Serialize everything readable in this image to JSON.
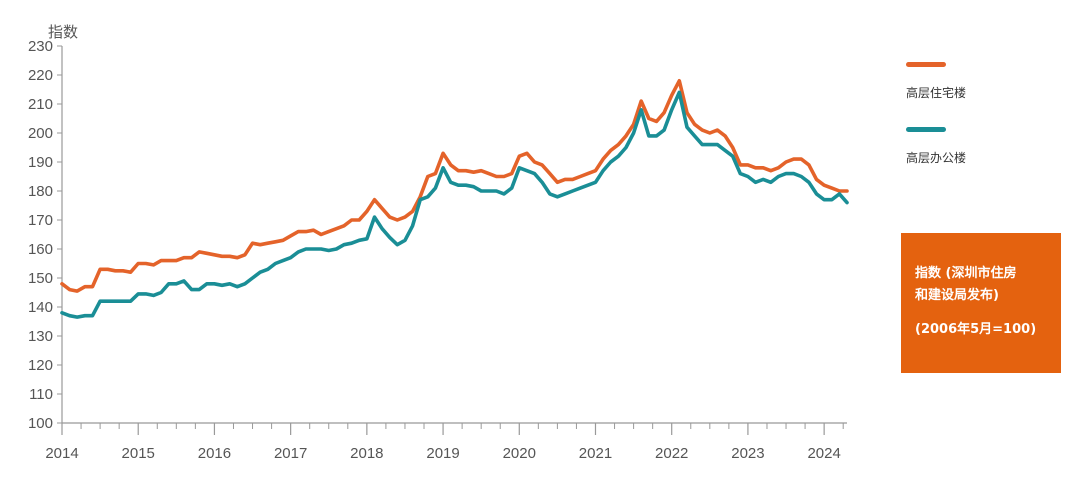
{
  "chart_data": {
    "type": "line",
    "ylabel": "指数",
    "ylim": [
      100,
      230
    ],
    "yticks": [
      100,
      110,
      120,
      130,
      140,
      150,
      160,
      170,
      180,
      190,
      200,
      210,
      220,
      230
    ],
    "xlim": [
      2014.0,
      2024.3
    ],
    "xticks": [
      "2014",
      "2015",
      "2016",
      "2017",
      "2018",
      "2019",
      "2020",
      "2021",
      "2022",
      "2023",
      "2024"
    ],
    "legend_position": "right",
    "grid": false,
    "series": [
      {
        "name": "高层住宅楼",
        "color": "#e4632a",
        "x": [
          2014.0,
          2014.1,
          2014.2,
          2014.3,
          2014.4,
          2014.5,
          2014.6,
          2014.7,
          2014.8,
          2014.9,
          2015.0,
          2015.1,
          2015.2,
          2015.3,
          2015.4,
          2015.5,
          2015.6,
          2015.7,
          2015.8,
          2015.9,
          2016.0,
          2016.1,
          2016.2,
          2016.3,
          2016.4,
          2016.5,
          2016.6,
          2016.7,
          2016.8,
          2016.9,
          2017.0,
          2017.1,
          2017.2,
          2017.3,
          2017.4,
          2017.5,
          2017.6,
          2017.7,
          2017.8,
          2017.9,
          2018.0,
          2018.1,
          2018.2,
          2018.3,
          2018.4,
          2018.5,
          2018.6,
          2018.7,
          2018.8,
          2018.9,
          2019.0,
          2019.1,
          2019.2,
          2019.3,
          2019.4,
          2019.5,
          2019.6,
          2019.7,
          2019.8,
          2019.9,
          2020.0,
          2020.1,
          2020.2,
          2020.3,
          2020.4,
          2020.5,
          2020.6,
          2020.7,
          2020.8,
          2020.9,
          2021.0,
          2021.1,
          2021.2,
          2021.3,
          2021.4,
          2021.5,
          2021.6,
          2021.7,
          2021.8,
          2021.9,
          2022.0,
          2022.1,
          2022.2,
          2022.3,
          2022.4,
          2022.5,
          2022.6,
          2022.7,
          2022.8,
          2022.9,
          2023.0,
          2023.1,
          2023.2,
          2023.3,
          2023.4,
          2023.5,
          2023.6,
          2023.7,
          2023.8,
          2023.9,
          2024.0,
          2024.1,
          2024.2,
          2024.3
        ],
        "values": [
          148,
          146,
          145.5,
          147,
          147,
          153,
          153,
          152.5,
          152.5,
          152,
          155,
          155,
          154.5,
          156,
          156,
          156,
          157,
          157,
          159,
          158.5,
          158,
          157.5,
          157.5,
          157,
          158,
          162,
          161.5,
          162,
          162.5,
          163,
          164.5,
          166,
          166,
          166.5,
          165,
          166,
          167,
          168,
          170,
          170,
          173,
          177,
          174,
          171,
          170,
          171,
          173,
          178,
          185,
          186,
          193,
          189,
          187,
          187,
          186.5,
          187,
          186,
          185,
          185,
          186,
          192,
          193,
          190,
          189,
          186,
          183,
          184,
          184,
          185,
          186,
          187,
          191,
          194,
          196,
          199,
          203,
          211,
          205,
          204,
          207,
          213,
          218,
          207,
          203,
          201,
          200,
          201,
          199,
          195,
          189,
          189,
          188,
          188,
          187,
          188,
          190,
          191,
          191,
          189,
          184,
          182,
          181,
          180,
          180
        ]
      },
      {
        "name": "高层办公楼",
        "color": "#1a8e96",
        "x": [
          2014.0,
          2014.1,
          2014.2,
          2014.3,
          2014.4,
          2014.5,
          2014.6,
          2014.7,
          2014.8,
          2014.9,
          2015.0,
          2015.1,
          2015.2,
          2015.3,
          2015.4,
          2015.5,
          2015.6,
          2015.7,
          2015.8,
          2015.9,
          2016.0,
          2016.1,
          2016.2,
          2016.3,
          2016.4,
          2016.5,
          2016.6,
          2016.7,
          2016.8,
          2016.9,
          2017.0,
          2017.1,
          2017.2,
          2017.3,
          2017.4,
          2017.5,
          2017.6,
          2017.7,
          2017.8,
          2017.9,
          2018.0,
          2018.1,
          2018.2,
          2018.3,
          2018.4,
          2018.5,
          2018.6,
          2018.7,
          2018.8,
          2018.9,
          2019.0,
          2019.1,
          2019.2,
          2019.3,
          2019.4,
          2019.5,
          2019.6,
          2019.7,
          2019.8,
          2019.9,
          2020.0,
          2020.1,
          2020.2,
          2020.3,
          2020.4,
          2020.5,
          2020.6,
          2020.7,
          2020.8,
          2020.9,
          2021.0,
          2021.1,
          2021.2,
          2021.3,
          2021.4,
          2021.5,
          2021.6,
          2021.7,
          2021.8,
          2021.9,
          2022.0,
          2022.1,
          2022.2,
          2022.3,
          2022.4,
          2022.5,
          2022.6,
          2022.7,
          2022.8,
          2022.9,
          2023.0,
          2023.1,
          2023.2,
          2023.3,
          2023.4,
          2023.5,
          2023.6,
          2023.7,
          2023.8,
          2023.9,
          2024.0,
          2024.1,
          2024.2,
          2024.3
        ],
        "values": [
          138,
          137,
          136.5,
          137,
          137,
          142,
          142,
          142,
          142,
          142,
          144.5,
          144.5,
          144,
          145,
          148,
          148,
          149,
          146,
          146,
          148,
          148,
          147.5,
          148,
          147,
          148,
          150,
          152,
          153,
          155,
          156,
          157,
          159,
          160,
          160,
          160,
          159.5,
          160,
          161.5,
          162,
          163,
          163.5,
          171,
          167,
          164,
          161.5,
          163,
          168,
          177,
          178,
          181,
          188,
          183,
          182,
          182,
          181.5,
          180,
          180,
          180,
          179,
          181,
          188,
          187,
          186,
          183,
          179,
          178,
          179,
          180,
          181,
          182,
          183,
          187,
          190,
          192,
          195,
          200,
          208,
          199,
          199,
          201,
          208,
          214,
          202,
          199,
          196,
          196,
          196,
          194,
          192,
          186,
          185,
          183,
          184,
          183,
          185,
          186,
          186,
          185,
          183,
          179,
          177,
          177,
          179,
          176
        ]
      }
    ]
  },
  "note": {
    "line1": "指数 (深圳市住房",
    "line2": "和建设局发布)",
    "line3": "(2006年5月=100)"
  }
}
